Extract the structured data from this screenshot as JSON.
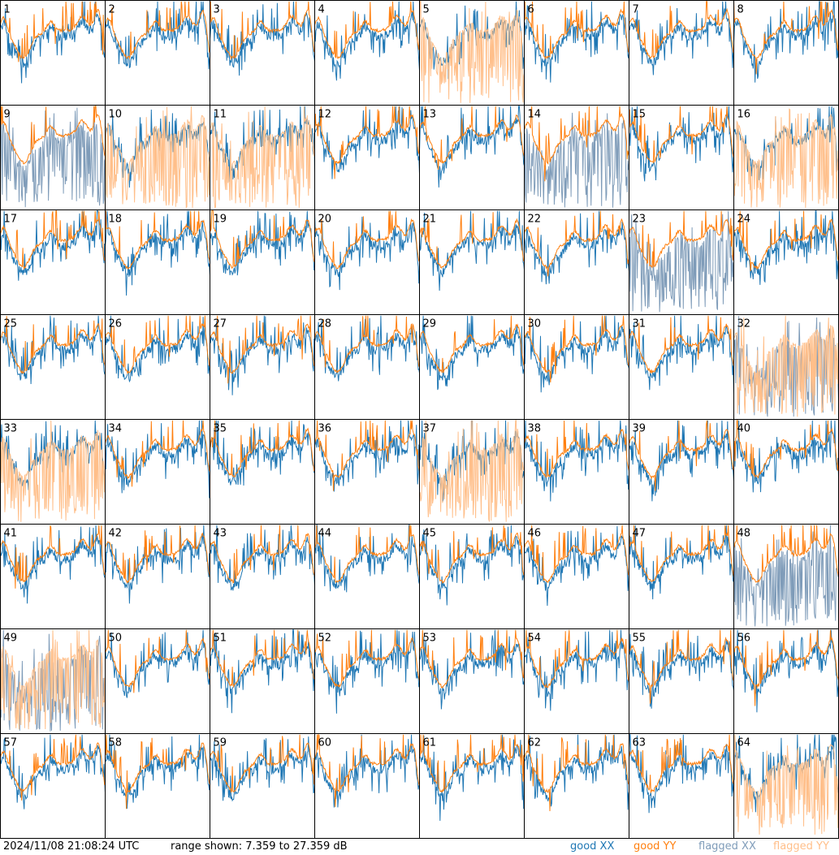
{
  "colors": {
    "good_xx": "#1f77b4",
    "good_yy": "#ff7f0e",
    "flagged_xx": "#7f9cb9",
    "flagged_yy": "#ffbf8a"
  },
  "footer": {
    "timestamp": "2024/11/08 21:08:24 UTC",
    "range_text": "range shown: 7.359 to 27.359 dB"
  },
  "legend": [
    {
      "label": "good XX",
      "key": "good_xx"
    },
    {
      "label": "good YY",
      "key": "good_yy"
    },
    {
      "label": "flagged XX",
      "key": "flagged_xx"
    },
    {
      "label": "flagged YY",
      "key": "flagged_yy"
    }
  ],
  "chart_data": {
    "type": "line",
    "grid": "8x8 small multiples",
    "ylim": [
      7.359,
      27.359
    ],
    "units": "dB",
    "panels": [
      {
        "id": "1",
        "xx": "good",
        "yy": "good"
      },
      {
        "id": "2",
        "xx": "good",
        "yy": "good"
      },
      {
        "id": "3",
        "xx": "good",
        "yy": "good"
      },
      {
        "id": "4",
        "xx": "good",
        "yy": "good"
      },
      {
        "id": "5",
        "xx": "good",
        "yy": "flagged"
      },
      {
        "id": "6",
        "xx": "good",
        "yy": "good"
      },
      {
        "id": "7",
        "xx": "good",
        "yy": "good"
      },
      {
        "id": "8",
        "xx": "good",
        "yy": "good"
      },
      {
        "id": "9",
        "xx": "flagged",
        "yy": "good"
      },
      {
        "id": "10",
        "xx": "good",
        "yy": "flagged"
      },
      {
        "id": "11",
        "xx": "good",
        "yy": "flagged"
      },
      {
        "id": "12",
        "xx": "good",
        "yy": "good"
      },
      {
        "id": "13",
        "xx": "good",
        "yy": "good"
      },
      {
        "id": "14",
        "xx": "flagged",
        "yy": "good"
      },
      {
        "id": "15",
        "xx": "good",
        "yy": "good"
      },
      {
        "id": "16",
        "xx": "good",
        "yy": "flagged"
      },
      {
        "id": "17",
        "xx": "good",
        "yy": "good"
      },
      {
        "id": "18",
        "xx": "good",
        "yy": "good"
      },
      {
        "id": "19",
        "xx": "good",
        "yy": "good"
      },
      {
        "id": "20",
        "xx": "good",
        "yy": "good"
      },
      {
        "id": "21",
        "xx": "good",
        "yy": "good"
      },
      {
        "id": "22",
        "xx": "good",
        "yy": "good"
      },
      {
        "id": "23",
        "xx": "flagged",
        "yy": "good"
      },
      {
        "id": "24",
        "xx": "good",
        "yy": "good"
      },
      {
        "id": "25",
        "xx": "good",
        "yy": "good"
      },
      {
        "id": "26",
        "xx": "good",
        "yy": "good"
      },
      {
        "id": "27",
        "xx": "good",
        "yy": "good"
      },
      {
        "id": "28",
        "xx": "good",
        "yy": "good"
      },
      {
        "id": "29",
        "xx": "good",
        "yy": "good"
      },
      {
        "id": "30",
        "xx": "good",
        "yy": "good"
      },
      {
        "id": "31",
        "xx": "good",
        "yy": "good"
      },
      {
        "id": "32",
        "xx": "flagged",
        "yy": "flagged"
      },
      {
        "id": "33",
        "xx": "good",
        "yy": "flagged"
      },
      {
        "id": "34",
        "xx": "good",
        "yy": "good"
      },
      {
        "id": "35",
        "xx": "good",
        "yy": "good"
      },
      {
        "id": "36",
        "xx": "good",
        "yy": "good"
      },
      {
        "id": "37",
        "xx": "good",
        "yy": "flagged"
      },
      {
        "id": "38",
        "xx": "good",
        "yy": "good"
      },
      {
        "id": "39",
        "xx": "good",
        "yy": "good"
      },
      {
        "id": "40",
        "xx": "good",
        "yy": "good"
      },
      {
        "id": "41",
        "xx": "good",
        "yy": "good"
      },
      {
        "id": "42",
        "xx": "good",
        "yy": "good"
      },
      {
        "id": "43",
        "xx": "good",
        "yy": "good"
      },
      {
        "id": "44",
        "xx": "good",
        "yy": "good"
      },
      {
        "id": "45",
        "xx": "good",
        "yy": "good"
      },
      {
        "id": "46",
        "xx": "good",
        "yy": "good"
      },
      {
        "id": "47",
        "xx": "good",
        "yy": "good"
      },
      {
        "id": "48",
        "xx": "flagged",
        "yy": "good"
      },
      {
        "id": "49",
        "xx": "flagged",
        "yy": "flagged"
      },
      {
        "id": "50",
        "xx": "good",
        "yy": "good"
      },
      {
        "id": "51",
        "xx": "good",
        "yy": "good"
      },
      {
        "id": "52",
        "xx": "good",
        "yy": "good"
      },
      {
        "id": "53",
        "xx": "good",
        "yy": "good"
      },
      {
        "id": "54",
        "xx": "good",
        "yy": "good"
      },
      {
        "id": "55",
        "xx": "good",
        "yy": "good"
      },
      {
        "id": "56",
        "xx": "good",
        "yy": "good"
      },
      {
        "id": "57",
        "xx": "good",
        "yy": "good"
      },
      {
        "id": "58",
        "xx": "good",
        "yy": "good"
      },
      {
        "id": "59",
        "xx": "good",
        "yy": "good"
      },
      {
        "id": "60",
        "xx": "good",
        "yy": "good"
      },
      {
        "id": "61",
        "xx": "good",
        "yy": "good"
      },
      {
        "id": "62",
        "xx": "good",
        "yy": "good"
      },
      {
        "id": "63",
        "xx": "good",
        "yy": "good"
      },
      {
        "id": "64",
        "xx": "good",
        "yy": "flagged"
      }
    ]
  }
}
